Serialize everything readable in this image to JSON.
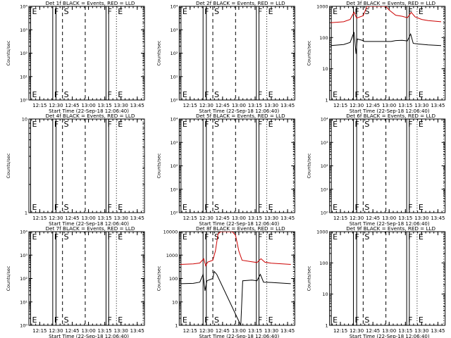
{
  "figure": {
    "background": "#ffffff",
    "foreground": "#000000"
  },
  "colors": {
    "events": "#000000",
    "lld": "#cc0000"
  },
  "chart_data": [
    {
      "type": "line",
      "title": "Det 1f BLACK = Events, RED = LLD",
      "xlabel": "Start Time (22-Sep-18 12:06:40)",
      "ylabel": "Counts/sec",
      "yscale": "log",
      "ylim_exp": [
        0,
        4
      ],
      "ytick_labels": [
        "10⁰",
        "10¹",
        "10²",
        "10³",
        "10⁴"
      ],
      "series": []
    },
    {
      "type": "line",
      "title": "Det 2f BLACK = Events, RED = LLD",
      "xlabel": "Start Time (22-Sep-18 12:06:40)",
      "ylabel": "Counts/sec",
      "yscale": "log",
      "ylim_exp": [
        0,
        4
      ],
      "ytick_labels": [
        "10⁰",
        "10¹",
        "10²",
        "10³",
        "10⁴"
      ],
      "series": []
    },
    {
      "type": "line",
      "title": "Det 3f BLACK = Events, RED = LLD",
      "xlabel": "Start Time (22-Sep-18 12:06:40)",
      "ylabel": "Counts/sec",
      "yscale": "log",
      "ylim_exp": [
        0,
        3
      ],
      "ytick_labels": [
        "1",
        "10",
        "100",
        "1000"
      ],
      "series": [
        {
          "color": "red",
          "points": [
            [
              12.1,
              300
            ],
            [
              12.3,
              320
            ],
            [
              12.4,
              380
            ],
            [
              12.46,
              650
            ],
            [
              12.5,
              420
            ],
            [
              12.6,
              500
            ],
            [
              12.66,
              1000
            ],
            [
              12.72,
              1000
            ],
            [
              12.8,
              1000
            ],
            [
              12.9,
              1000
            ],
            [
              12.95,
              1000
            ],
            [
              13.0,
              760
            ],
            [
              13.1,
              520
            ],
            [
              13.2,
              480
            ],
            [
              13.28,
              430
            ],
            [
              13.34,
              640
            ],
            [
              13.4,
              460
            ],
            [
              13.5,
              380
            ],
            [
              13.6,
              350
            ],
            [
              13.8,
              320
            ]
          ]
        },
        {
          "color": "black",
          "points": [
            [
              12.1,
              55
            ],
            [
              12.3,
              60
            ],
            [
              12.4,
              70
            ],
            [
              12.46,
              150
            ],
            [
              12.49,
              30
            ],
            [
              12.51,
              90
            ],
            [
              12.6,
              80
            ],
            [
              12.62,
              75
            ],
            [
              13.03,
              75
            ],
            [
              13.1,
              80
            ],
            [
              13.2,
              82
            ],
            [
              13.28,
              78
            ],
            [
              13.33,
              130
            ],
            [
              13.37,
              65
            ],
            [
              13.45,
              62
            ],
            [
              13.6,
              58
            ],
            [
              13.8,
              55
            ]
          ]
        }
      ]
    },
    {
      "type": "line",
      "title": "Det 4f BLACK = Events, RED = LLD",
      "xlabel": "Start Time (22-Sep-18 12:06:40)",
      "ylabel": "Counts/sec",
      "yscale": "log",
      "ylim_exp": [
        0,
        1
      ],
      "ytick_labels": [
        "1",
        "10"
      ],
      "series": []
    },
    {
      "type": "line",
      "title": "Det 5f BLACK = Events, RED = LLD",
      "xlabel": "Start Time (22-Sep-18 12:06:40)",
      "ylabel": "Counts/sec",
      "yscale": "log",
      "ylim_exp": [
        0,
        4
      ],
      "ytick_labels": [
        "10⁰",
        "10¹",
        "10²",
        "10³",
        "10⁴"
      ],
      "series": []
    },
    {
      "type": "line",
      "title": "Det 6f BLACK = Events, RED = LLD",
      "xlabel": "Start Time (22-Sep-18 12:06:40)",
      "ylabel": "Counts/sec",
      "yscale": "log",
      "ylim_exp": [
        0,
        4
      ],
      "ytick_labels": [
        "10⁰",
        "10¹",
        "10²",
        "10³",
        "10⁴"
      ],
      "series": []
    },
    {
      "type": "line",
      "title": "Det 7f BLACK = Events, RED = LLD",
      "xlabel": "Start Time (22-Sep-18 12:06:40)",
      "ylabel": "Counts/sec",
      "yscale": "log",
      "ylim_exp": [
        0,
        4
      ],
      "ytick_labels": [
        "10⁰",
        "10¹",
        "10²",
        "10³",
        "10⁴"
      ],
      "series": []
    },
    {
      "type": "line",
      "title": "Det 8f BLACK = Events, RED = LLD",
      "xlabel": "Start Time (22-Sep-18 12:06:40)",
      "ylabel": "Counts/sec",
      "yscale": "log",
      "ylim_exp": [
        0,
        4
      ],
      "ytick_labels": [
        "1",
        "10",
        "100",
        "1000",
        "10000"
      ],
      "series": [
        {
          "color": "red",
          "points": [
            [
              12.1,
              400
            ],
            [
              12.3,
              420
            ],
            [
              12.4,
              460
            ],
            [
              12.46,
              700
            ],
            [
              12.49,
              350
            ],
            [
              12.52,
              500
            ],
            [
              12.6,
              600
            ],
            [
              12.64,
              1500
            ],
            [
              12.68,
              8000
            ],
            [
              12.72,
              10000
            ],
            [
              12.9,
              10000
            ],
            [
              12.95,
              7000
            ],
            [
              13.0,
              1500
            ],
            [
              13.05,
              600
            ],
            [
              13.2,
              520
            ],
            [
              13.28,
              480
            ],
            [
              13.34,
              700
            ],
            [
              13.4,
              500
            ],
            [
              13.5,
              450
            ],
            [
              13.8,
              400
            ]
          ]
        },
        {
          "color": "black",
          "points": [
            [
              12.1,
              60
            ],
            [
              12.3,
              62
            ],
            [
              12.4,
              70
            ],
            [
              12.45,
              150
            ],
            [
              12.48,
              30
            ],
            [
              12.51,
              80
            ],
            [
              12.6,
              100
            ],
            [
              12.62,
              200
            ],
            [
              12.66,
              150
            ],
            [
              13.03,
              1
            ],
            [
              13.06,
              80
            ],
            [
              13.2,
              85
            ],
            [
              13.28,
              80
            ],
            [
              13.33,
              150
            ],
            [
              13.38,
              70
            ],
            [
              13.5,
              68
            ],
            [
              13.8,
              60
            ]
          ]
        }
      ]
    },
    {
      "type": "line",
      "title": "Det 9f BLACK = Events, RED = LLD",
      "xlabel": "Start Time (22-Sep-18 12:06:40)",
      "ylabel": "Counts/sec",
      "yscale": "log",
      "ylim_exp": [
        0,
        3
      ],
      "ytick_labels": [
        "1",
        "10",
        "100",
        "1000"
      ],
      "series": []
    }
  ],
  "shared_x": {
    "range": [
      12.083,
      13.861
    ],
    "ticks": [
      12.25,
      12.5,
      12.75,
      13.0,
      13.25,
      13.5,
      13.75
    ],
    "tick_labels": [
      "12:15",
      "12:30",
      "12:45",
      "13:00",
      "13:15",
      "13:30",
      "13:45"
    ]
  },
  "markers": [
    {
      "x": 12.11,
      "style": "solid",
      "label": "E"
    },
    {
      "x": 12.45,
      "style": "solid",
      "label": "F"
    },
    {
      "x": 12.5,
      "style": "solid",
      "label": ""
    },
    {
      "x": 12.6,
      "style": "dashed",
      "label": "S"
    },
    {
      "x": 12.95,
      "style": "dashed",
      "label": ""
    },
    {
      "x": 13.27,
      "style": "solid",
      "label": "F"
    },
    {
      "x": 13.31,
      "style": "solid",
      "label": ""
    },
    {
      "x": 13.43,
      "style": "dotted",
      "label": "E"
    },
    {
      "x": 13.84,
      "style": "dotted",
      "label": ""
    }
  ]
}
